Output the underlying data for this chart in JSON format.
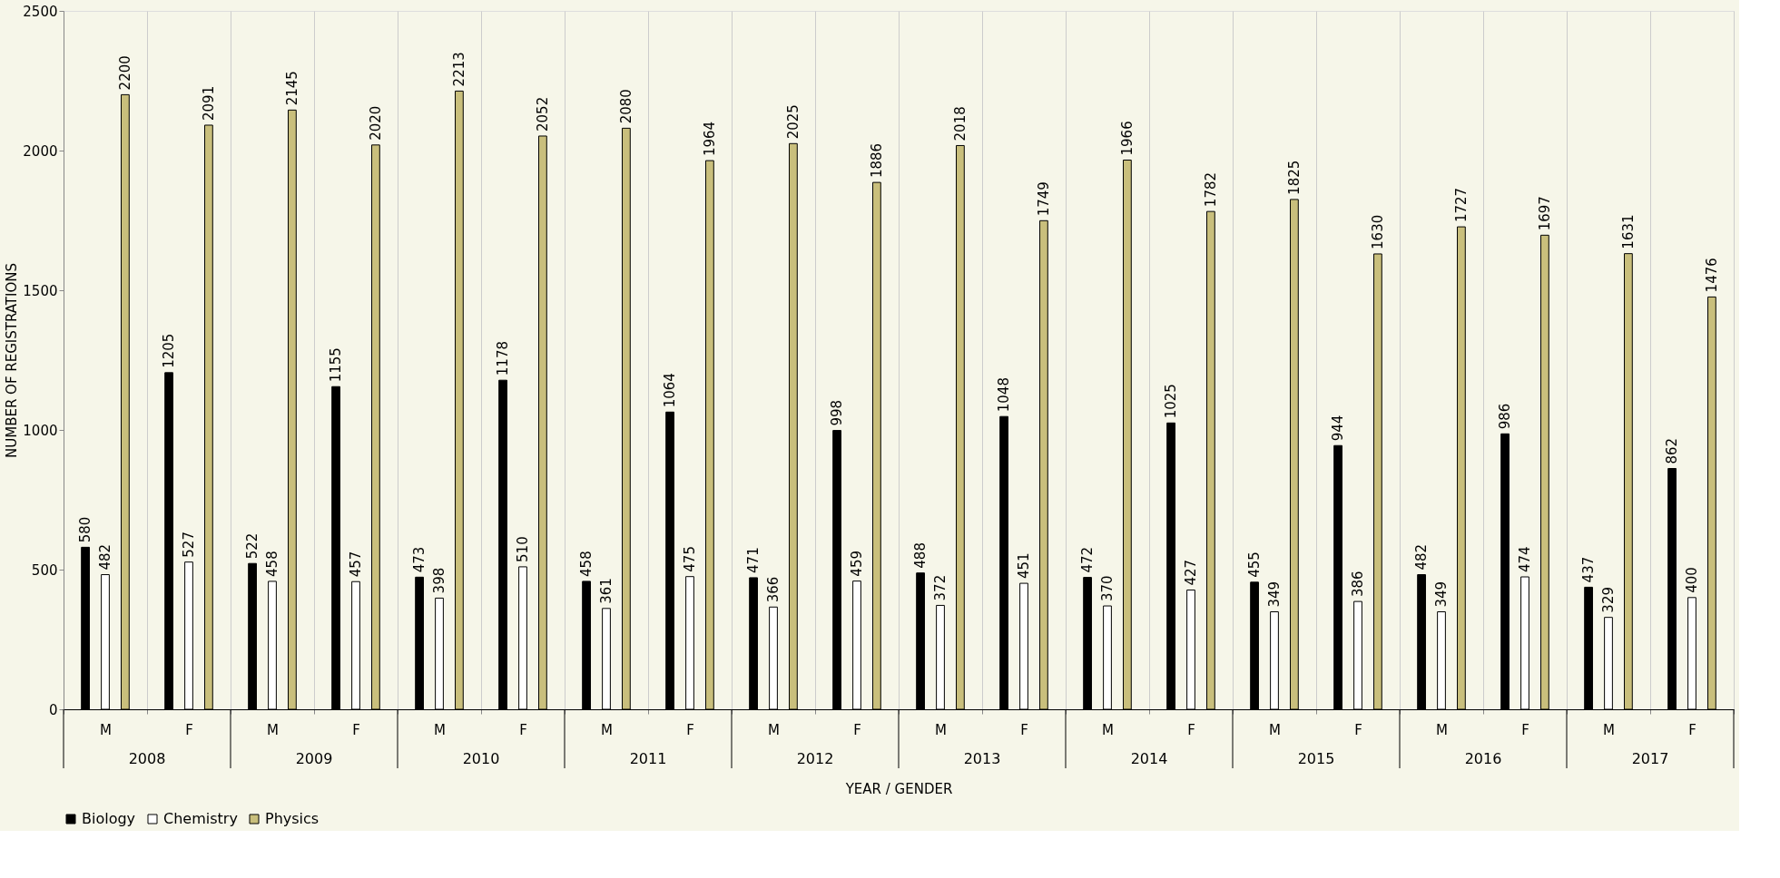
{
  "chart_data": {
    "type": "bar",
    "xlabel": "YEAR / GENDER",
    "ylabel": "NUMBER OF REGISTRATIONS",
    "categories": [
      "M",
      "F",
      "M",
      "F",
      "M",
      "F",
      "M",
      "F",
      "M",
      "F",
      "M",
      "F",
      "M",
      "F",
      "M",
      "F",
      "M",
      "F",
      "M",
      "F"
    ],
    "series": [
      {
        "name": "Biology",
        "color": "#000000",
        "values": [
          580,
          1205,
          522,
          1155,
          473,
          1178,
          458,
          1064,
          471,
          998,
          488,
          1048,
          472,
          1025,
          455,
          944,
          482,
          986,
          437,
          862
        ]
      },
      {
        "name": "Chemistry",
        "color": "#ffffff",
        "values": [
          482,
          527,
          458,
          457,
          398,
          510,
          361,
          475,
          366,
          459,
          372,
          451,
          370,
          427,
          349,
          386,
          349,
          474,
          329,
          400
        ]
      },
      {
        "name": "Physics",
        "color": "#c9bf7c",
        "values": [
          2200,
          2091,
          2145,
          2020,
          2213,
          2052,
          2080,
          1964,
          2025,
          1886,
          2018,
          1749,
          1966,
          1782,
          1825,
          1630,
          1727,
          1697,
          1631,
          1476
        ]
      }
    ],
    "annotations": [
      "2008",
      "2009",
      "2010",
      "2011",
      "2012",
      "2013",
      "2014",
      "2015",
      "2016",
      "2017"
    ],
    "ylim": [
      0,
      2500
    ],
    "yticks": [
      0,
      500,
      1000,
      1500,
      2000,
      2500
    ],
    "data_labels": true,
    "grid": "x",
    "legend": "bottom"
  }
}
